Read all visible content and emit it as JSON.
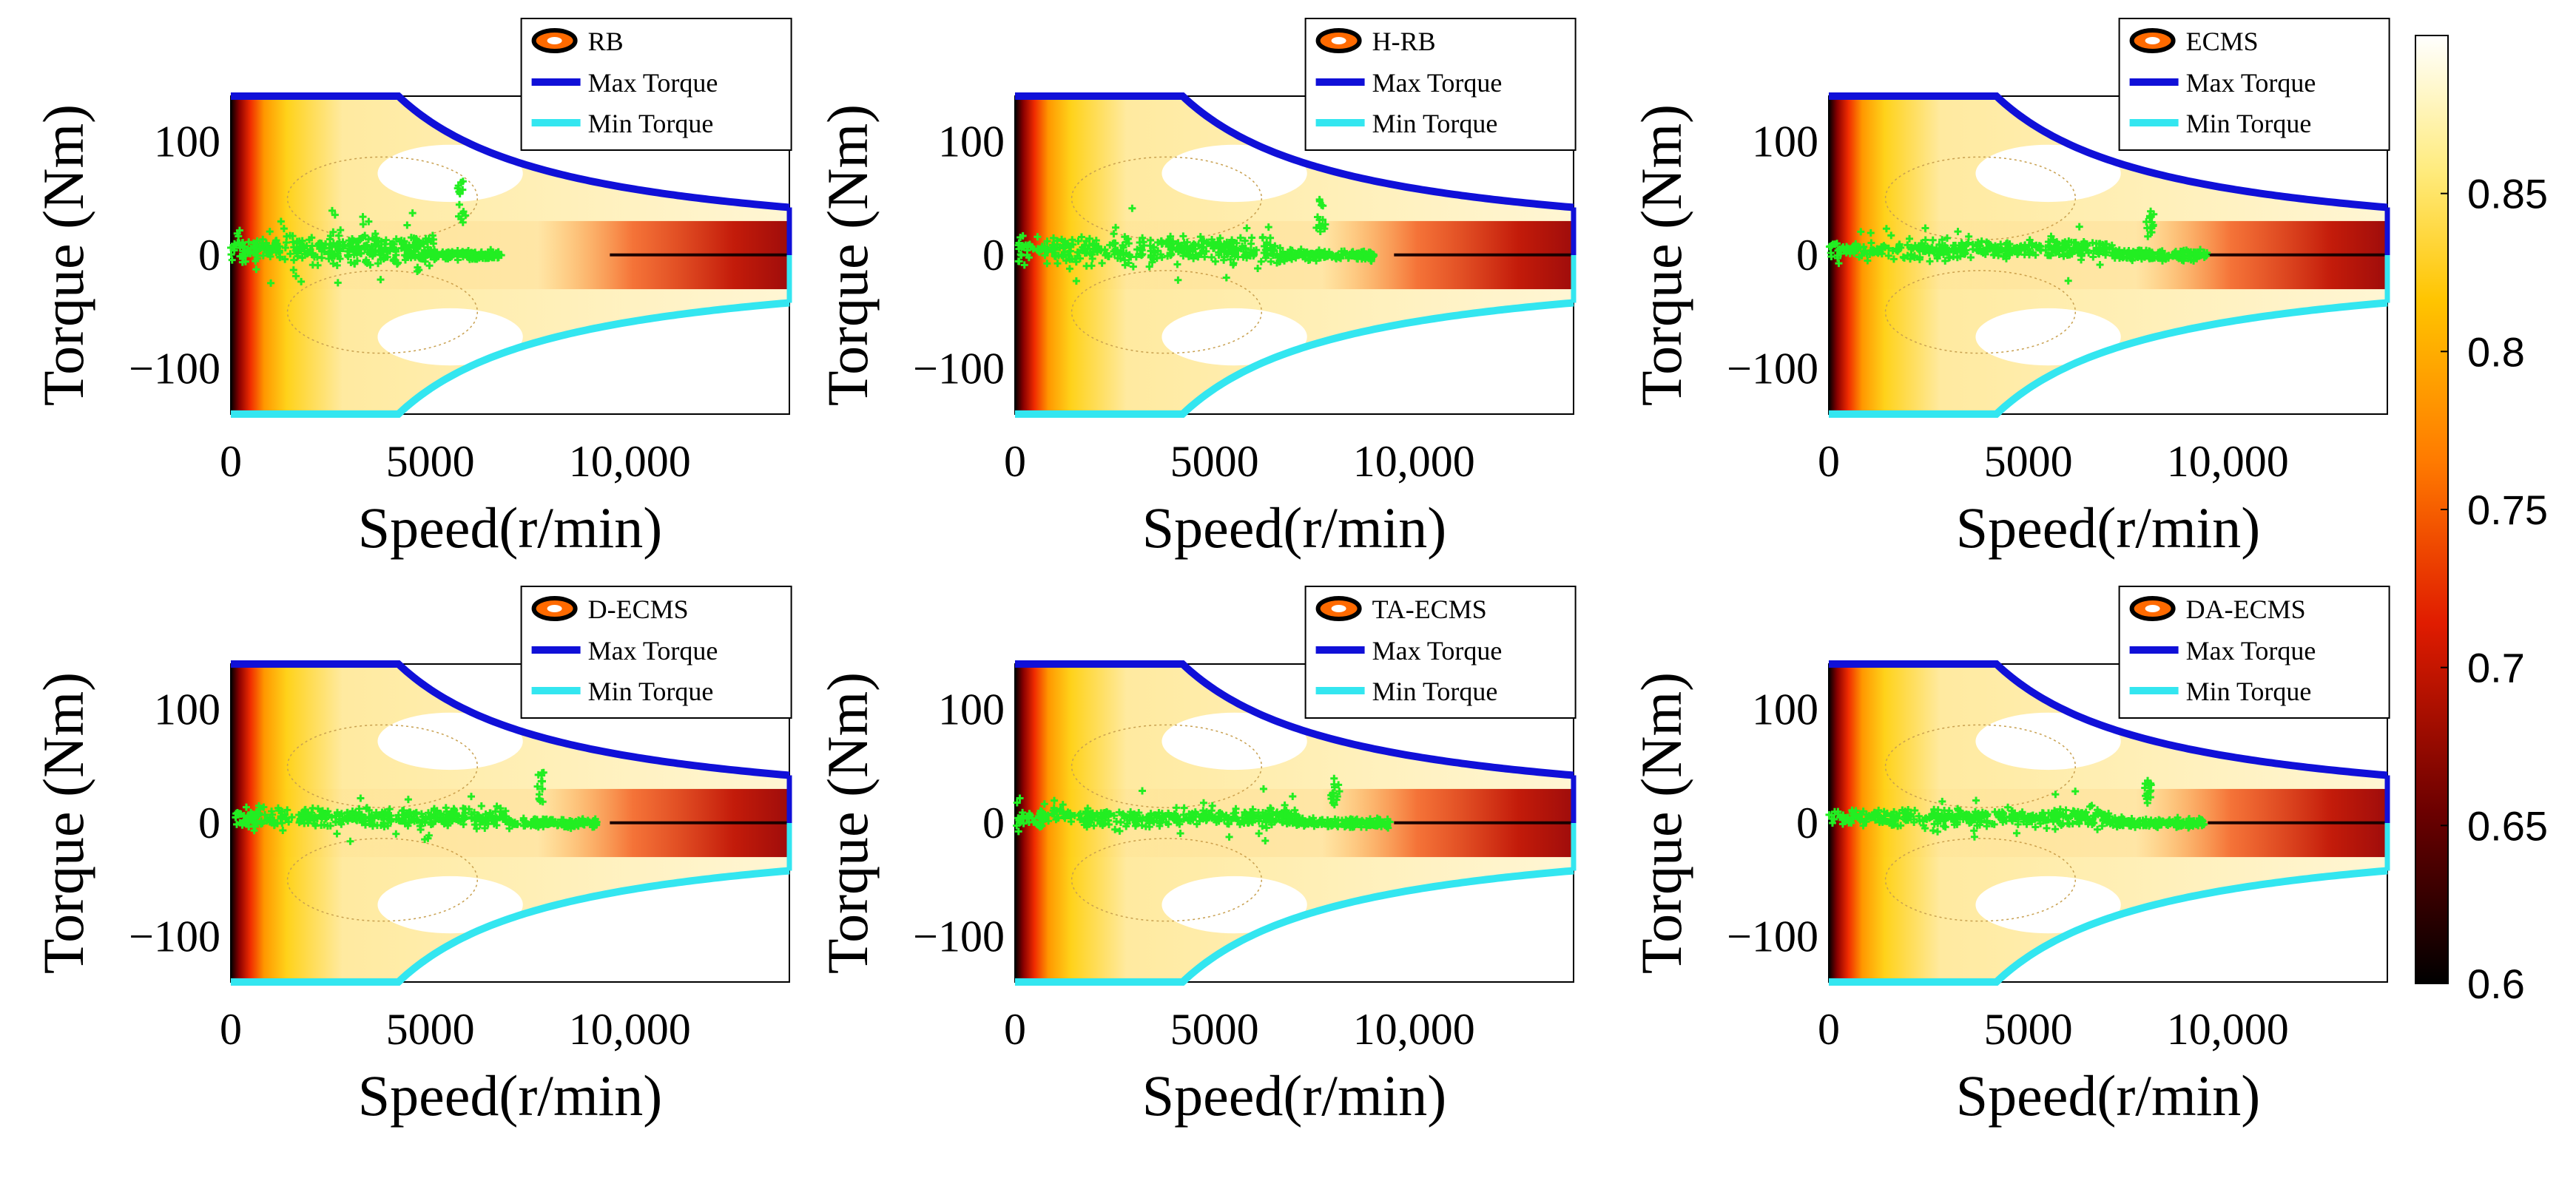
{
  "chart_data": {
    "type": "contour-scatter",
    "panels": [
      {
        "legend": "RB",
        "spread": 1.0,
        "maxSpeed": 6800,
        "peak": 65
      },
      {
        "legend": "H-RB",
        "spread": 0.9,
        "maxSpeed": 9000,
        "peak": 50
      },
      {
        "legend": "ECMS",
        "spread": 0.6,
        "maxSpeed": 9500,
        "peak": 40
      },
      {
        "legend": "D-ECMS",
        "spread": 0.6,
        "maxSpeed": 9200,
        "peak": 45
      },
      {
        "legend": "TA-ECMS",
        "spread": 0.55,
        "maxSpeed": 9400,
        "peak": 40
      },
      {
        "legend": "DA-ECMS",
        "spread": 0.55,
        "maxSpeed": 9400,
        "peak": 40
      }
    ],
    "legend_entries": [
      "Max Torque",
      "Min Torque"
    ],
    "xlabel": "Speed(r/min)",
    "ylabel": "Torque (Nm)",
    "xticks": [
      "0",
      "5000",
      "10,000"
    ],
    "yticks": [
      "100",
      "0",
      "−100"
    ],
    "xlim": [
      0,
      14000
    ],
    "ylim": [
      -140,
      140
    ],
    "max_torque_curve": {
      "base_speed": 4200,
      "max_torque": 140,
      "torque_at_max_speed": 40
    },
    "colorbar": {
      "range": [
        0.6,
        0.9
      ],
      "ticks": [
        "0.85",
        "0.8",
        "0.75",
        "0.7",
        "0.65",
        "0.6"
      ]
    },
    "colors": {
      "max_torque": "#1010d8",
      "min_torque": "#33e6f0",
      "points": "#22ee22"
    }
  }
}
